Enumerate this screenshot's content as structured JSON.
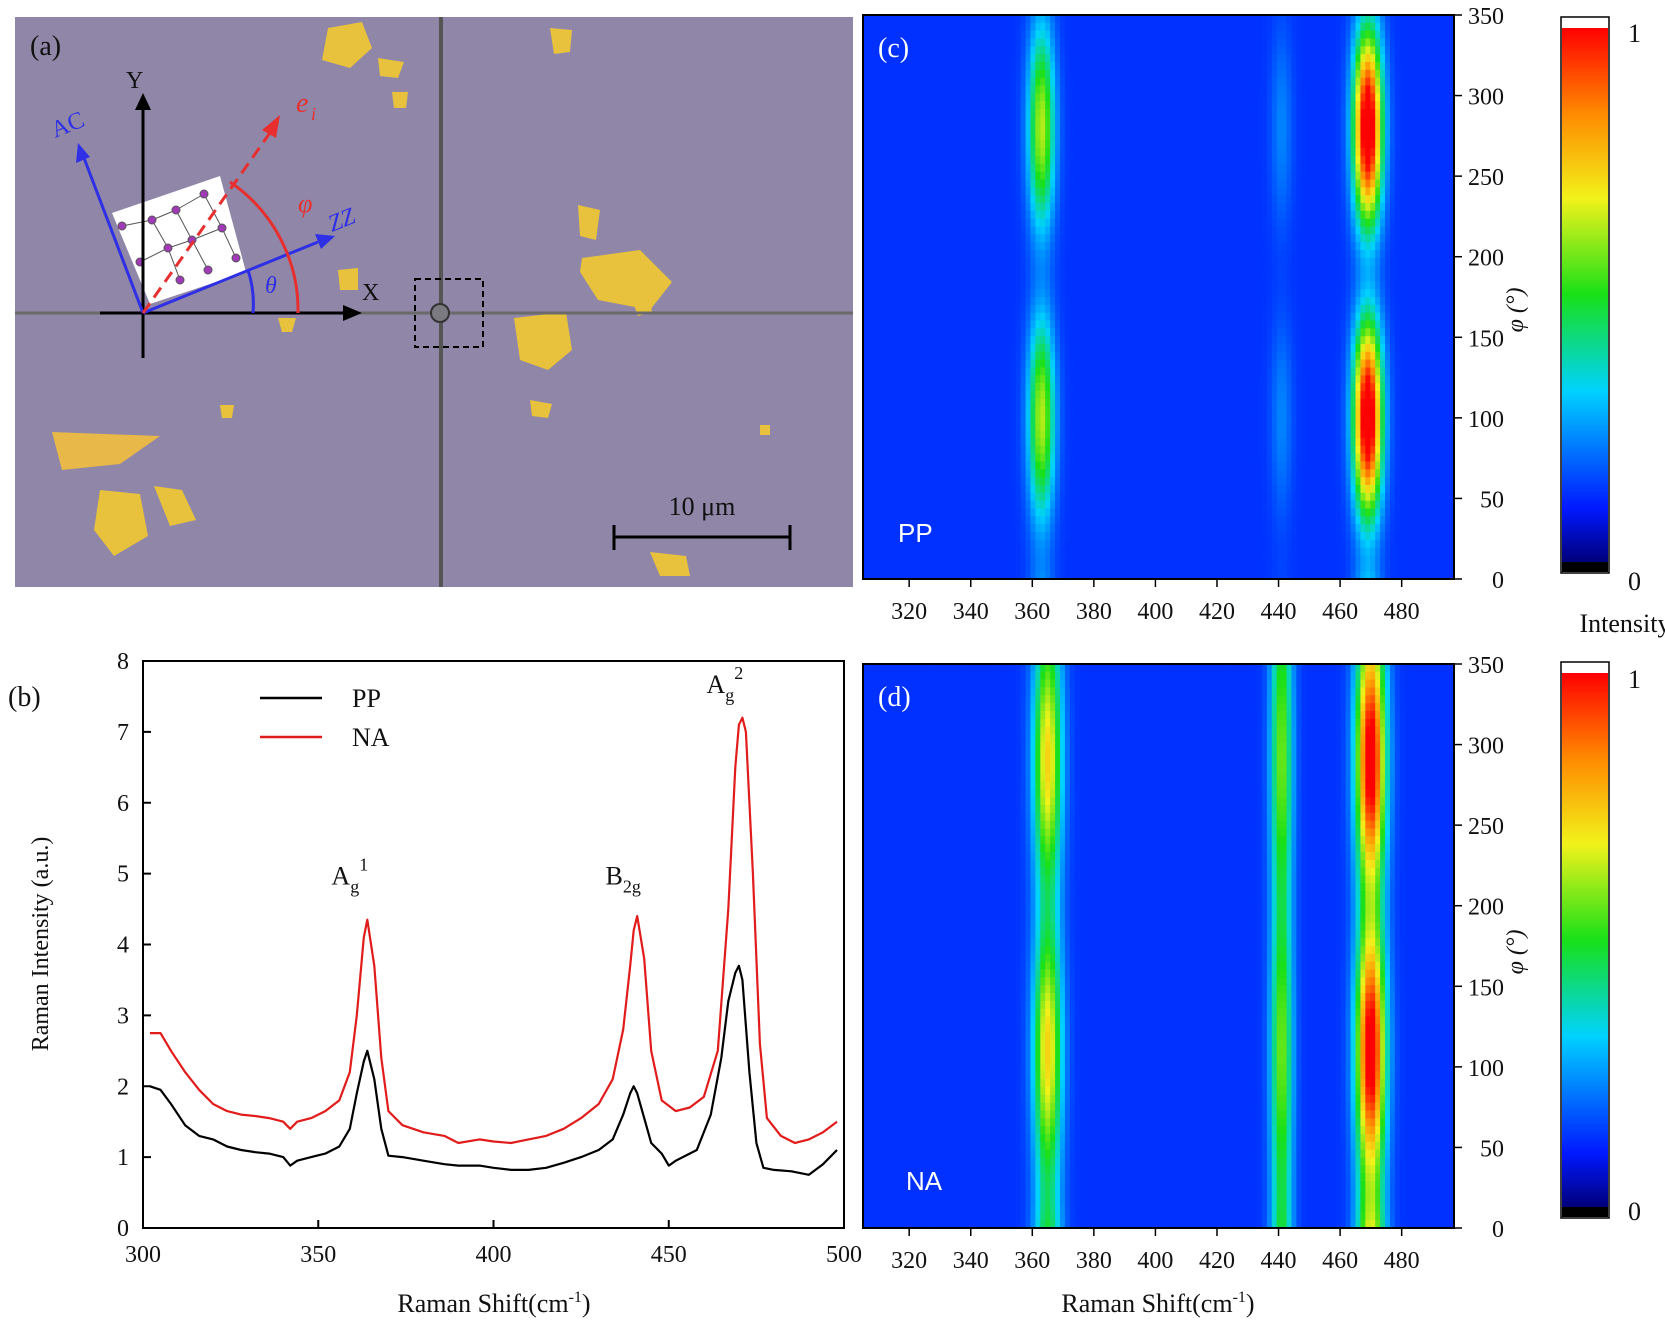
{
  "panels": {
    "a": {
      "label": "(a)",
      "axis_labels": {
        "x": "X",
        "y": "Y",
        "ac": "AC",
        "zz": "ZZ",
        "ei": "e",
        "ei_sub": "i",
        "phi": "φ",
        "theta": "θ"
      },
      "scalebar": "10 μm",
      "colors": {
        "background": "#8f86a8",
        "flake": "#e8c23c",
        "axis": "#000000",
        "crystal": "#2f2fe6",
        "polarization": "#e82f2f"
      }
    },
    "b": {
      "label": "(b)"
    },
    "c": {
      "label": "(c)",
      "config": "PP",
      "colorbar_label": "Intensity"
    },
    "d": {
      "label": "(d)",
      "config": "NA"
    }
  },
  "chart_data": [
    {
      "id": "b",
      "type": "line",
      "xlabel": "Raman Shift(cm",
      "xlabel_sup": "-1",
      "xlabel_close": ")",
      "ylabel": "Raman Intensity (a.u.)",
      "xlim": [
        300,
        500
      ],
      "ylim": [
        0,
        8
      ],
      "xticks": [
        "300",
        "350",
        "400",
        "450",
        "500"
      ],
      "yticks": [
        "0",
        "1",
        "2",
        "3",
        "4",
        "5",
        "6",
        "7",
        "8"
      ],
      "legend": "top-left",
      "annotations": [
        {
          "base": "A",
          "sub": "g",
          "sup": "1",
          "x": 363,
          "y": 4.85
        },
        {
          "base": "B",
          "sub": "2g",
          "sup": "",
          "x": 441,
          "y": 4.85
        },
        {
          "base": "A",
          "sub": "g",
          "sup": "2",
          "x": 470,
          "y": 7.55
        }
      ],
      "series": [
        {
          "name": "PP",
          "color": "#000000",
          "x": [
            302,
            305,
            308,
            312,
            316,
            320,
            324,
            328,
            332,
            336,
            340,
            342,
            344,
            348,
            352,
            356,
            359,
            361,
            363,
            364,
            366,
            368,
            370,
            374,
            380,
            386,
            390,
            396,
            400,
            405,
            410,
            415,
            420,
            425,
            430,
            434,
            437,
            439,
            440,
            441,
            443,
            445,
            448,
            450,
            452,
            454,
            458,
            462,
            465,
            467,
            469,
            470,
            471,
            473,
            475,
            477,
            480,
            485,
            490,
            494,
            498
          ],
          "y": [
            2.0,
            1.95,
            1.75,
            1.45,
            1.3,
            1.25,
            1.15,
            1.1,
            1.07,
            1.05,
            1.0,
            0.88,
            0.95,
            1.0,
            1.05,
            1.15,
            1.4,
            1.9,
            2.35,
            2.5,
            2.1,
            1.4,
            1.02,
            1.0,
            0.95,
            0.9,
            0.88,
            0.88,
            0.85,
            0.82,
            0.82,
            0.85,
            0.92,
            1.0,
            1.1,
            1.25,
            1.6,
            1.9,
            2.0,
            1.9,
            1.55,
            1.2,
            1.05,
            0.88,
            0.95,
            1.0,
            1.1,
            1.6,
            2.4,
            3.2,
            3.6,
            3.7,
            3.5,
            2.2,
            1.2,
            0.85,
            0.82,
            0.8,
            0.75,
            0.9,
            1.1
          ]
        },
        {
          "name": "NA",
          "color": "#e21b1b",
          "x": [
            302,
            305,
            308,
            312,
            316,
            320,
            324,
            328,
            332,
            336,
            340,
            342,
            344,
            348,
            352,
            356,
            359,
            361,
            363,
            364,
            366,
            368,
            370,
            374,
            380,
            386,
            390,
            396,
            400,
            405,
            410,
            415,
            420,
            425,
            430,
            434,
            437,
            439,
            440,
            441,
            443,
            445,
            448,
            452,
            456,
            460,
            464,
            467,
            469,
            470,
            471,
            472,
            474,
            476,
            478,
            482,
            486,
            490,
            494,
            498
          ],
          "y": [
            2.75,
            2.75,
            2.5,
            2.2,
            1.95,
            1.75,
            1.65,
            1.6,
            1.58,
            1.55,
            1.5,
            1.4,
            1.5,
            1.55,
            1.65,
            1.8,
            2.2,
            3.0,
            4.1,
            4.35,
            3.7,
            2.4,
            1.65,
            1.45,
            1.35,
            1.3,
            1.2,
            1.25,
            1.22,
            1.2,
            1.25,
            1.3,
            1.4,
            1.55,
            1.75,
            2.1,
            2.8,
            3.7,
            4.2,
            4.4,
            3.8,
            2.5,
            1.8,
            1.65,
            1.7,
            1.85,
            2.5,
            4.5,
            6.5,
            7.1,
            7.2,
            7.0,
            5.0,
            2.6,
            1.55,
            1.3,
            1.2,
            1.25,
            1.35,
            1.5
          ]
        }
      ]
    },
    {
      "id": "c",
      "type": "heatmap",
      "mode": "PP",
      "xlabel": "",
      "ylabel": "φ (°)",
      "xlim": [
        305,
        497
      ],
      "ylim": [
        0,
        350
      ],
      "xticks": [
        "320",
        "340",
        "360",
        "380",
        "400",
        "420",
        "440",
        "460",
        "480"
      ],
      "yticks": [
        "0",
        "50",
        "100",
        "150",
        "200",
        "250",
        "300",
        "350"
      ],
      "peaks": [
        {
          "center": 363,
          "width": 3.0,
          "amp_min": 0.1,
          "amp_max": 0.5,
          "phase": 100
        },
        {
          "center": 441,
          "width": 2.5,
          "amp_min": 0.02,
          "amp_max": 0.1,
          "phase": 100
        },
        {
          "center": 469,
          "width": 3.2,
          "amp_min": 0.15,
          "amp_max": 1.0,
          "phase": 100
        }
      ],
      "colorbar": {
        "min_label": "0",
        "max_label": "1"
      }
    },
    {
      "id": "d",
      "type": "heatmap",
      "mode": "NA",
      "xlabel": "Raman Shift(cm",
      "xlabel_sup": "-1",
      "xlabel_close": ")",
      "ylabel": "φ (°)",
      "xlim": [
        305,
        497
      ],
      "ylim": [
        0,
        350
      ],
      "xticks": [
        "320",
        "340",
        "360",
        "380",
        "400",
        "420",
        "440",
        "460",
        "480"
      ],
      "yticks": [
        "0",
        "50",
        "100",
        "150",
        "200",
        "250",
        "300",
        "350"
      ],
      "peaks": [
        {
          "center": 365,
          "width": 3.2,
          "amp_min": 0.32,
          "amp_max": 0.6,
          "phase": 110
        },
        {
          "center": 441,
          "width": 2.5,
          "amp_min": 0.35,
          "amp_max": 0.45,
          "phase": 110
        },
        {
          "center": 470,
          "width": 3.3,
          "amp_min": 0.5,
          "amp_max": 0.95,
          "phase": 110
        }
      ],
      "colorbar": {
        "min_label": "0",
        "max_label": "1"
      }
    }
  ]
}
